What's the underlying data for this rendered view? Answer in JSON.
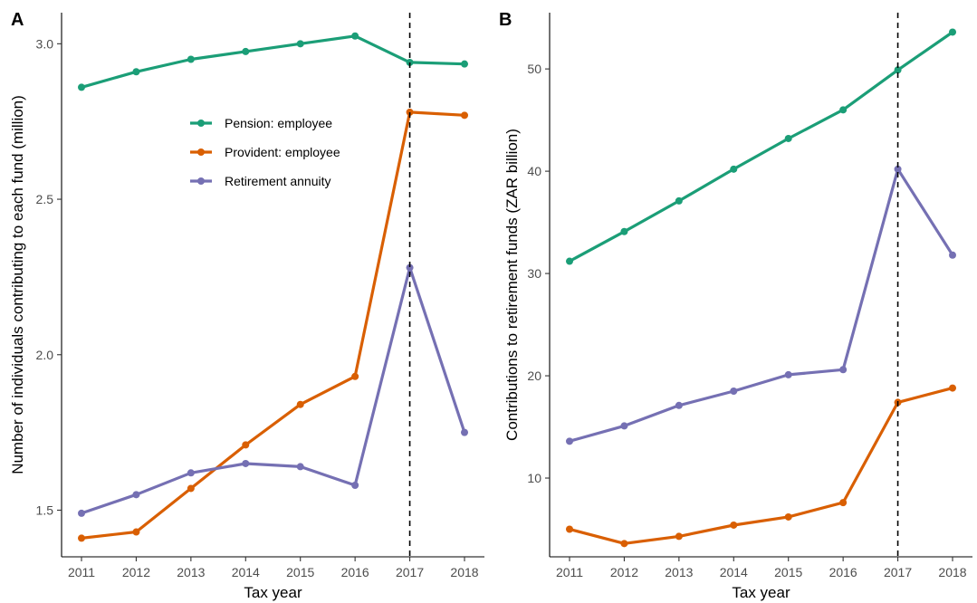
{
  "chart_data": [
    {
      "type": "line",
      "panel_label": "A",
      "x": [
        2011,
        2012,
        2013,
        2014,
        2015,
        2016,
        2017,
        2018
      ],
      "xlabel": "Tax year",
      "ylabel": "Number of individuals contributing to each fund (million)",
      "ylim": [
        1.35,
        3.1
      ],
      "yticks": [
        "1.5",
        "2.0",
        "2.5",
        "3.0"
      ],
      "vline_x": 2017,
      "grid": false,
      "legend_position": "upper-middle",
      "series": [
        {
          "name": "Pension: employee",
          "color": "#1b9e77",
          "values": [
            2.86,
            2.91,
            2.95,
            2.975,
            3.0,
            3.025,
            2.94,
            2.935
          ]
        },
        {
          "name": "Provident: employee",
          "color": "#d95f02",
          "values": [
            1.41,
            1.43,
            1.57,
            1.71,
            1.84,
            1.93,
            2.78,
            2.77
          ]
        },
        {
          "name": "Retirement annuity",
          "color": "#7570b3",
          "values": [
            1.49,
            1.55,
            1.62,
            1.65,
            1.64,
            1.58,
            2.28,
            1.75
          ]
        }
      ]
    },
    {
      "type": "line",
      "panel_label": "B",
      "x": [
        2011,
        2012,
        2013,
        2014,
        2015,
        2016,
        2017,
        2018
      ],
      "xlabel": "Tax year",
      "ylabel": "Contributions to retirement funds (ZAR billion)",
      "ylim": [
        2.3,
        55.5
      ],
      "yticks": [
        "10",
        "20",
        "30",
        "40",
        "50"
      ],
      "vline_x": 2017,
      "grid": false,
      "legend_position": "none",
      "series": [
        {
          "name": "Pension: employee",
          "color": "#1b9e77",
          "values": [
            31.2,
            34.1,
            37.1,
            40.2,
            43.2,
            46.0,
            49.9,
            53.6
          ]
        },
        {
          "name": "Provident: employee",
          "color": "#d95f02",
          "values": [
            5.0,
            3.6,
            4.3,
            5.4,
            6.2,
            7.6,
            17.4,
            18.8
          ]
        },
        {
          "name": "Retirement annuity",
          "color": "#7570b3",
          "values": [
            13.6,
            15.1,
            17.1,
            18.5,
            20.1,
            20.6,
            40.2,
            31.8
          ]
        }
      ]
    }
  ]
}
